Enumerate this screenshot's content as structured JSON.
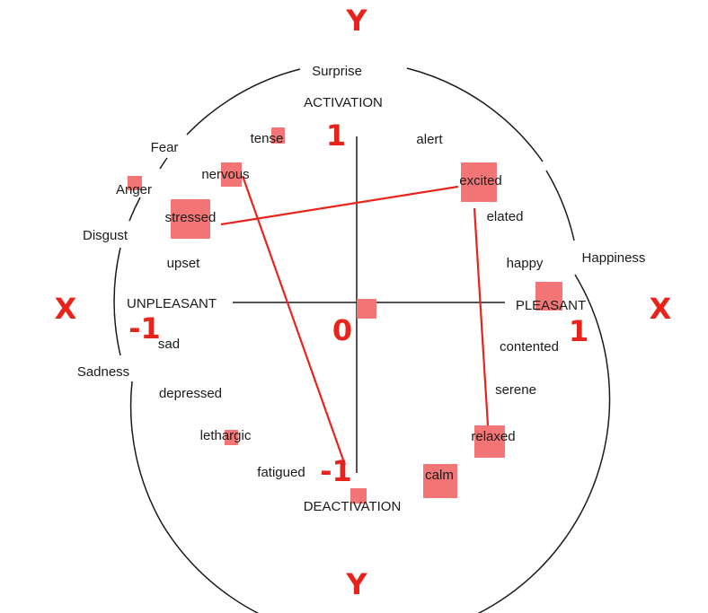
{
  "axes": {
    "y_top": "Y",
    "y_bottom": "Y",
    "x_left": "X",
    "x_right": "X",
    "pole_top": "ACTIVATION",
    "pole_bottom": "DEACTIVATION",
    "pole_left": "UNPLEASANT",
    "pole_right": "PLEASANT"
  },
  "numbers": {
    "top": "1",
    "right": "1",
    "left": "-1",
    "bottom": "-1",
    "origin": "0"
  },
  "outer_labels": {
    "surprise": "Surprise",
    "fear": "Fear",
    "anger": "Anger",
    "disgust": "Disgust",
    "happiness": "Happiness",
    "sadness": "Sadness"
  },
  "inner_labels": {
    "tense": "tense",
    "alert": "alert",
    "nervous": "nervous",
    "excited": "excited",
    "stressed": "stressed",
    "elated": "elated",
    "upset": "upset",
    "happy": "happy",
    "sad": "sad",
    "contented": "contented",
    "depressed": "depressed",
    "serene": "serene",
    "lethargic": "lethargic",
    "relaxed": "relaxed",
    "fatigued": "fatigued",
    "calm": "calm"
  },
  "colors": {
    "marker": "#f47575",
    "line": "#e8231b",
    "axis_label": "#e8231b",
    "frame": "#1a1a1a"
  }
}
